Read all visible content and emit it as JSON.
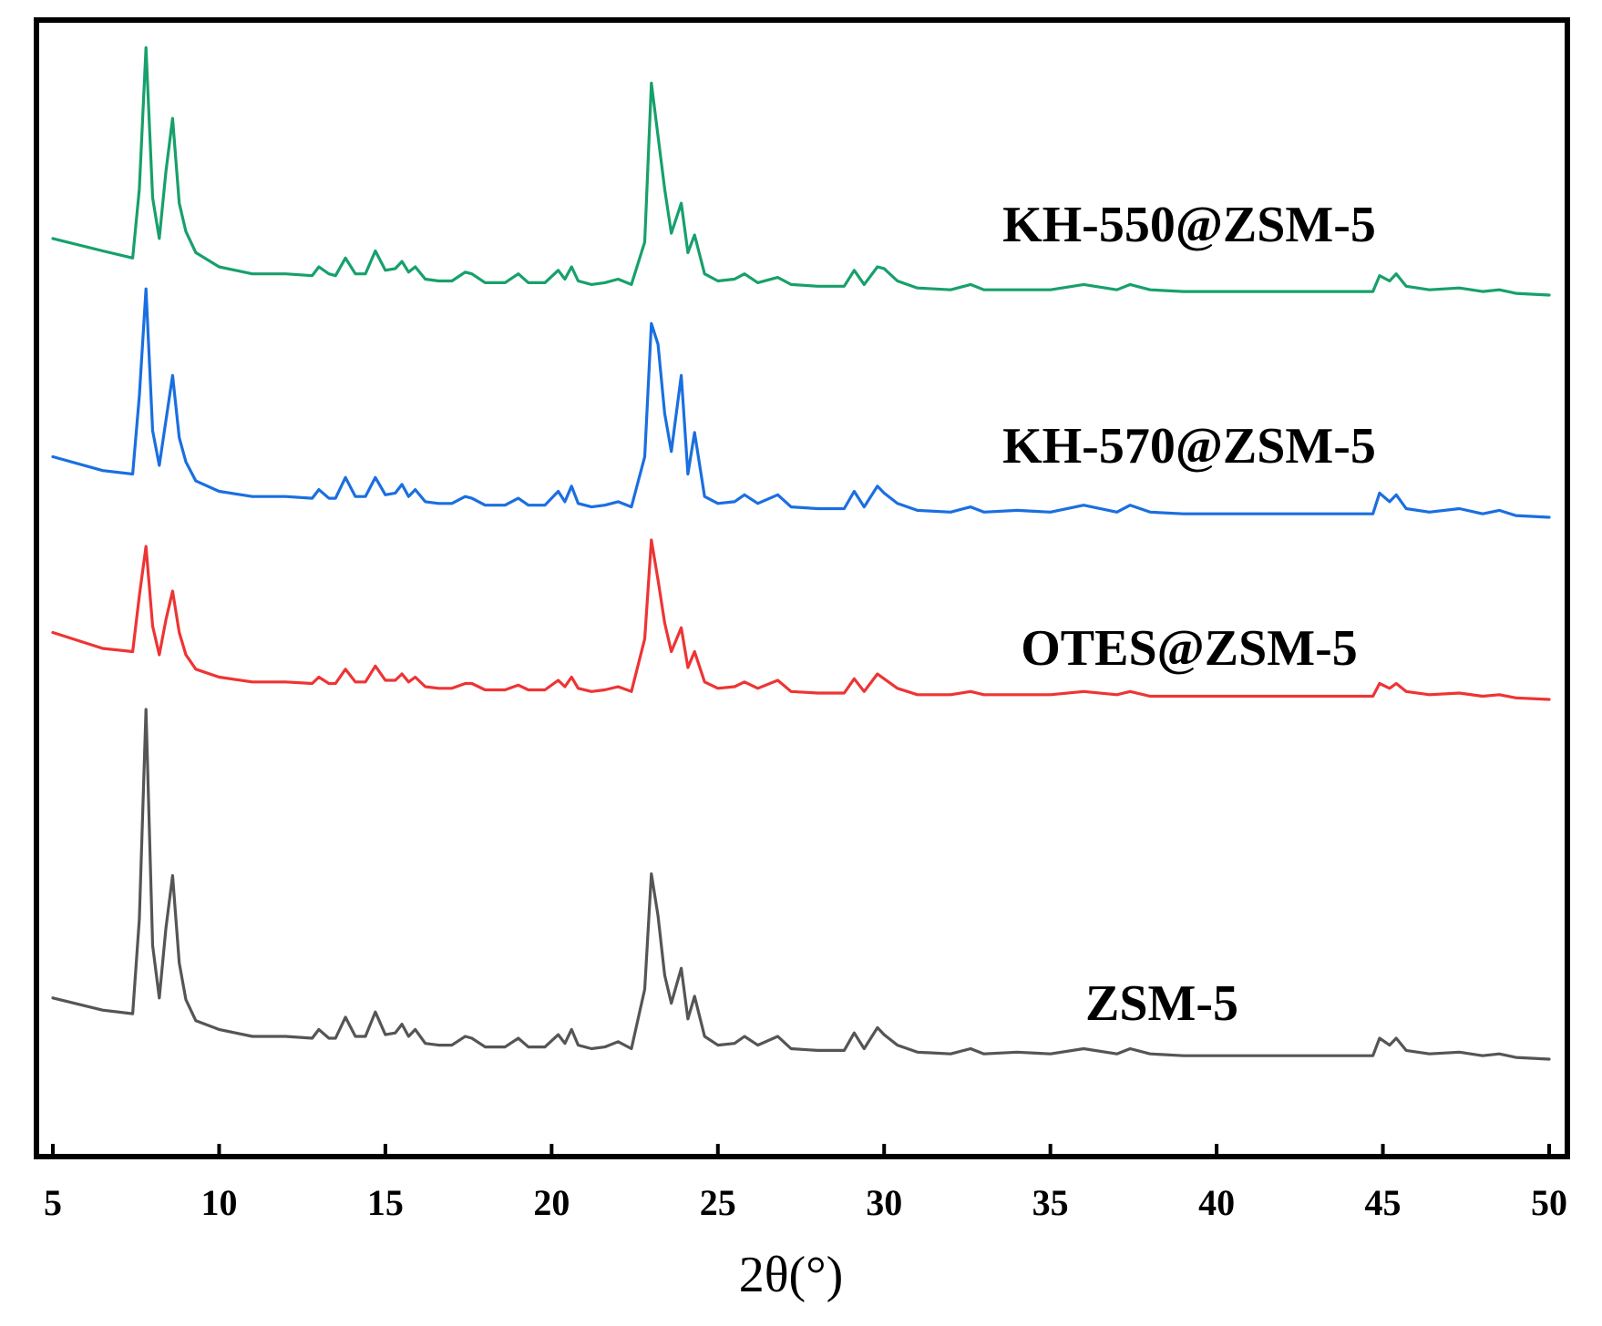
{
  "chart_data": {
    "type": "line",
    "title": "",
    "xlabel": "2θ(°)",
    "ylabel": "",
    "xlim": [
      5,
      50
    ],
    "xticks": [
      5,
      10,
      15,
      20,
      25,
      30,
      35,
      40,
      45,
      50
    ],
    "grid": false,
    "legend": "labels placed beside each trace",
    "y_units": "arbitrary intensity (offset stacked)",
    "series": [
      {
        "name": "KH-550@ZSM-5",
        "color": "#17a06b",
        "x": [
          5.0,
          6.5,
          7.4,
          7.6,
          7.8,
          8.0,
          8.2,
          8.4,
          8.6,
          8.8,
          9.0,
          9.3,
          10.0,
          11.0,
          12.0,
          12.8,
          13.0,
          13.3,
          13.5,
          13.8,
          14.1,
          14.4,
          14.7,
          15.0,
          15.3,
          15.5,
          15.7,
          15.9,
          16.2,
          16.6,
          17.0,
          17.4,
          17.6,
          18.0,
          18.6,
          19.0,
          19.3,
          19.8,
          20.2,
          20.4,
          20.6,
          20.8,
          21.2,
          21.6,
          22.0,
          22.4,
          22.8,
          23.0,
          23.2,
          23.4,
          23.6,
          23.9,
          24.1,
          24.3,
          24.6,
          25.0,
          25.5,
          25.8,
          26.2,
          26.8,
          27.2,
          28.0,
          28.8,
          29.1,
          29.4,
          29.8,
          30.0,
          30.4,
          31.0,
          32.0,
          32.6,
          33.0,
          34.0,
          35.0,
          36.0,
          37.0,
          37.4,
          38.0,
          39.0,
          40.0,
          41.0,
          42.0,
          43.0,
          44.0,
          44.7,
          44.9,
          45.2,
          45.4,
          45.7,
          46.4,
          47.3,
          48.0,
          48.5,
          49.0,
          50.0
        ],
        "y": [
          3.2,
          2.5,
          2.1,
          6.0,
          14.0,
          5.5,
          3.2,
          7.0,
          10.0,
          5.2,
          3.6,
          2.4,
          1.6,
          1.2,
          1.2,
          1.1,
          1.6,
          1.2,
          1.1,
          2.1,
          1.2,
          1.2,
          2.5,
          1.4,
          1.5,
          1.9,
          1.3,
          1.6,
          0.9,
          0.8,
          0.8,
          1.3,
          1.2,
          0.7,
          0.7,
          1.2,
          0.7,
          0.7,
          1.4,
          0.9,
          1.6,
          0.8,
          0.6,
          0.7,
          0.9,
          0.6,
          3.0,
          12.0,
          9.0,
          6.0,
          3.5,
          5.2,
          2.4,
          3.4,
          1.2,
          0.8,
          0.9,
          1.2,
          0.7,
          1.0,
          0.6,
          0.5,
          0.5,
          1.4,
          0.6,
          1.6,
          1.5,
          0.8,
          0.4,
          0.3,
          0.6,
          0.3,
          0.3,
          0.3,
          0.6,
          0.3,
          0.6,
          0.3,
          0.2,
          0.2,
          0.2,
          0.2,
          0.2,
          0.2,
          0.2,
          1.1,
          0.8,
          1.2,
          0.5,
          0.3,
          0.4,
          0.2,
          0.3,
          0.1,
          0.0
        ]
      },
      {
        "name": "KH-570@ZSM-5",
        "color": "#1a6fe0",
        "x": [
          5.0,
          6.5,
          7.4,
          7.6,
          7.8,
          8.0,
          8.2,
          8.4,
          8.6,
          8.8,
          9.0,
          9.3,
          10.0,
          11.0,
          12.0,
          12.8,
          13.0,
          13.3,
          13.5,
          13.8,
          14.1,
          14.4,
          14.7,
          15.0,
          15.3,
          15.5,
          15.7,
          15.9,
          16.2,
          16.6,
          17.0,
          17.4,
          17.6,
          18.0,
          18.6,
          19.0,
          19.3,
          19.8,
          20.2,
          20.4,
          20.6,
          20.8,
          21.2,
          21.6,
          22.0,
          22.4,
          22.8,
          23.0,
          23.2,
          23.4,
          23.6,
          23.9,
          24.1,
          24.3,
          24.6,
          25.0,
          25.5,
          25.8,
          26.2,
          26.8,
          27.2,
          28.0,
          28.8,
          29.1,
          29.4,
          29.8,
          30.0,
          30.4,
          31.0,
          32.0,
          32.6,
          33.0,
          34.0,
          35.0,
          36.0,
          37.0,
          37.4,
          38.0,
          39.0,
          40.0,
          41.0,
          42.0,
          43.0,
          44.0,
          44.7,
          44.9,
          45.2,
          45.4,
          45.7,
          46.4,
          47.3,
          48.0,
          48.5,
          49.0,
          50.0
        ],
        "y": [
          3.5,
          2.7,
          2.5,
          7.0,
          13.2,
          5.0,
          3.0,
          5.6,
          8.2,
          4.6,
          3.2,
          2.1,
          1.5,
          1.2,
          1.2,
          1.1,
          1.6,
          1.1,
          1.1,
          2.3,
          1.2,
          1.2,
          2.3,
          1.3,
          1.4,
          1.9,
          1.2,
          1.6,
          0.9,
          0.8,
          0.8,
          1.2,
          1.1,
          0.7,
          0.7,
          1.1,
          0.7,
          0.7,
          1.5,
          0.9,
          1.8,
          0.8,
          0.6,
          0.7,
          0.9,
          0.6,
          3.5,
          11.2,
          10.0,
          6.0,
          3.8,
          8.2,
          2.5,
          4.9,
          1.2,
          0.8,
          0.9,
          1.3,
          0.8,
          1.3,
          0.6,
          0.5,
          0.5,
          1.5,
          0.6,
          1.8,
          1.4,
          0.8,
          0.4,
          0.3,
          0.6,
          0.3,
          0.4,
          0.3,
          0.7,
          0.3,
          0.7,
          0.3,
          0.2,
          0.2,
          0.2,
          0.2,
          0.2,
          0.2,
          0.2,
          1.4,
          0.9,
          1.3,
          0.5,
          0.3,
          0.5,
          0.2,
          0.4,
          0.1,
          0.0
        ]
      },
      {
        "name": "OTES@ZSM-5",
        "color": "#ee3434",
        "x": [
          5.0,
          6.5,
          7.4,
          7.6,
          7.8,
          8.0,
          8.2,
          8.4,
          8.6,
          8.8,
          9.0,
          9.3,
          10.0,
          11.0,
          12.0,
          12.8,
          13.0,
          13.3,
          13.5,
          13.8,
          14.1,
          14.4,
          14.7,
          15.0,
          15.3,
          15.5,
          15.7,
          15.9,
          16.2,
          16.6,
          17.0,
          17.4,
          17.6,
          18.0,
          18.6,
          19.0,
          19.3,
          19.8,
          20.2,
          20.4,
          20.6,
          20.8,
          21.2,
          21.6,
          22.0,
          22.4,
          22.8,
          23.0,
          23.2,
          23.4,
          23.6,
          23.9,
          24.1,
          24.3,
          24.6,
          25.0,
          25.5,
          25.8,
          26.2,
          26.8,
          27.2,
          28.0,
          28.8,
          29.1,
          29.4,
          29.8,
          30.0,
          30.4,
          31.0,
          32.0,
          32.6,
          33.0,
          34.0,
          35.0,
          36.0,
          37.0,
          37.4,
          38.0,
          39.0,
          40.0,
          41.0,
          42.0,
          43.0,
          44.0,
          44.7,
          44.9,
          45.2,
          45.4,
          45.7,
          46.4,
          47.3,
          48.0,
          48.5,
          49.0,
          50.0
        ],
        "y": [
          4.2,
          3.2,
          3.0,
          6.5,
          9.6,
          4.6,
          2.8,
          5.0,
          6.8,
          4.2,
          2.8,
          1.9,
          1.4,
          1.1,
          1.1,
          1.0,
          1.4,
          1.0,
          1.0,
          1.9,
          1.1,
          1.1,
          2.1,
          1.2,
          1.2,
          1.6,
          1.1,
          1.4,
          0.8,
          0.7,
          0.7,
          1.0,
          1.0,
          0.6,
          0.6,
          0.9,
          0.6,
          0.6,
          1.2,
          0.8,
          1.4,
          0.7,
          0.5,
          0.6,
          0.8,
          0.5,
          3.8,
          10.0,
          7.5,
          4.8,
          3.0,
          4.5,
          2.0,
          3.0,
          1.1,
          0.7,
          0.8,
          1.1,
          0.7,
          1.2,
          0.5,
          0.4,
          0.4,
          1.3,
          0.5,
          1.6,
          1.3,
          0.7,
          0.3,
          0.3,
          0.5,
          0.3,
          0.3,
          0.3,
          0.5,
          0.3,
          0.5,
          0.2,
          0.2,
          0.2,
          0.2,
          0.2,
          0.2,
          0.2,
          0.2,
          1.0,
          0.7,
          1.0,
          0.5,
          0.3,
          0.4,
          0.2,
          0.3,
          0.1,
          0.0
        ]
      },
      {
        "name": "ZSM-5",
        "color": "#555555",
        "x": [
          5.0,
          6.5,
          7.4,
          7.6,
          7.8,
          8.0,
          8.2,
          8.4,
          8.6,
          8.8,
          9.0,
          9.3,
          10.0,
          11.0,
          12.0,
          12.8,
          13.0,
          13.3,
          13.5,
          13.8,
          14.1,
          14.4,
          14.7,
          15.0,
          15.3,
          15.5,
          15.7,
          15.9,
          16.2,
          16.6,
          17.0,
          17.4,
          17.6,
          18.0,
          18.6,
          19.0,
          19.3,
          19.8,
          20.2,
          20.4,
          20.6,
          20.8,
          21.2,
          21.6,
          22.0,
          22.4,
          22.8,
          23.0,
          23.2,
          23.4,
          23.6,
          23.9,
          24.1,
          24.3,
          24.6,
          25.0,
          25.5,
          25.8,
          26.2,
          26.8,
          27.2,
          28.0,
          28.8,
          29.1,
          29.4,
          29.8,
          30.0,
          30.4,
          31.0,
          32.0,
          32.6,
          33.0,
          34.0,
          35.0,
          36.0,
          37.0,
          37.4,
          38.0,
          39.0,
          40.0,
          41.0,
          42.0,
          43.0,
          44.0,
          44.7,
          44.9,
          45.2,
          45.4,
          45.7,
          46.4,
          47.3,
          48.0,
          48.5,
          49.0,
          50.0
        ],
        "y": [
          3.5,
          2.8,
          2.6,
          8.0,
          20.0,
          6.5,
          3.5,
          7.5,
          10.5,
          5.5,
          3.4,
          2.2,
          1.7,
          1.3,
          1.3,
          1.2,
          1.7,
          1.2,
          1.2,
          2.4,
          1.3,
          1.3,
          2.7,
          1.4,
          1.5,
          2.0,
          1.3,
          1.7,
          0.9,
          0.8,
          0.8,
          1.3,
          1.2,
          0.7,
          0.7,
          1.2,
          0.7,
          0.7,
          1.4,
          0.9,
          1.7,
          0.8,
          0.6,
          0.7,
          1.0,
          0.6,
          4.0,
          10.6,
          8.2,
          4.8,
          3.2,
          5.2,
          2.3,
          3.6,
          1.3,
          0.8,
          0.9,
          1.3,
          0.8,
          1.3,
          0.6,
          0.5,
          0.5,
          1.5,
          0.6,
          1.8,
          1.4,
          0.8,
          0.4,
          0.3,
          0.6,
          0.3,
          0.4,
          0.3,
          0.6,
          0.3,
          0.6,
          0.3,
          0.2,
          0.2,
          0.2,
          0.2,
          0.2,
          0.2,
          0.2,
          1.2,
          0.8,
          1.2,
          0.5,
          0.3,
          0.4,
          0.2,
          0.3,
          0.1,
          0.0
        ]
      }
    ]
  }
}
